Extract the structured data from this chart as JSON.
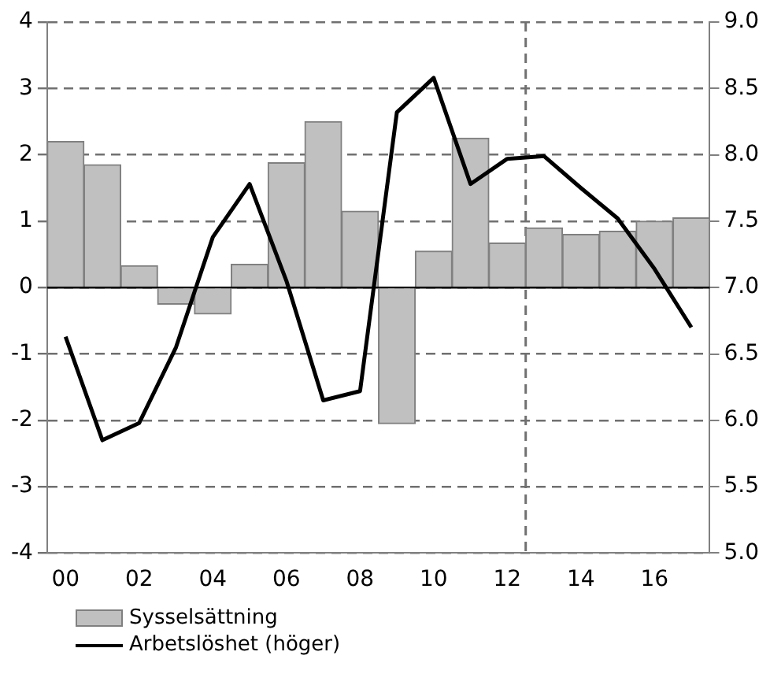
{
  "chart_data": {
    "type": "bar",
    "categories": [
      "00",
      null,
      "02",
      null,
      "04",
      null,
      "06",
      null,
      "08",
      null,
      "10",
      null,
      "12",
      null,
      "14",
      null,
      "16",
      null
    ],
    "series": [
      {
        "name": "Sysselsättning",
        "color": "#c0c0c0",
        "values": [
          2.2,
          1.85,
          0.33,
          -0.25,
          -0.4,
          0.35,
          1.88,
          2.5,
          1.15,
          -2.05,
          0.55,
          2.25,
          0.67,
          0.9,
          0.8,
          0.85,
          1.0,
          1.05
        ]
      },
      {
        "name": "Arbetslöshet (höger)",
        "type": "line",
        "axis": "y2",
        "color": "#000000",
        "values": [
          6.63,
          5.85,
          5.98,
          6.55,
          7.38,
          7.78,
          7.05,
          6.15,
          6.22,
          8.32,
          8.58,
          7.78,
          7.97,
          7.99,
          7.75,
          7.52,
          7.14,
          6.7
        ]
      }
    ],
    "ylim": [
      -4,
      4
    ],
    "yticks": [
      -4,
      -3,
      -2,
      -1,
      0,
      1,
      2,
      3,
      4
    ],
    "y2lim": [
      5,
      9
    ],
    "y2ticks": [
      {
        "value": 5,
        "label": "5.0"
      },
      {
        "value": 5.5,
        "label": "5.5"
      },
      {
        "value": 6,
        "label": "6.0"
      },
      {
        "value": 6.5,
        "label": "6.5"
      },
      {
        "value": 7,
        "label": "7.0"
      },
      {
        "value": 7.5,
        "label": "7.5"
      },
      {
        "value": 8,
        "label": "8.0"
      },
      {
        "value": 8.5,
        "label": "8.5"
      },
      {
        "value": 9,
        "label": "9.0"
      }
    ],
    "ref_lines": [
      {
        "axis": "x",
        "value": "12",
        "line_style": "dashed",
        "color": "#707070"
      }
    ],
    "grid": "y",
    "legend": "bottom left",
    "marker": "none",
    "line_style": "solid"
  }
}
